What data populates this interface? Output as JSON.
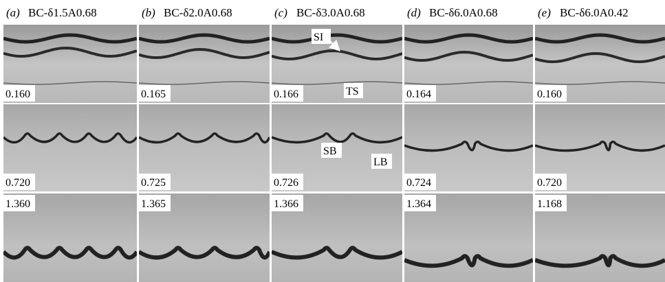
{
  "columns": [
    {
      "label": "(a)",
      "title": "BC-δ1.5A0.68",
      "times": [
        "0.160",
        "0.720",
        "1.360"
      ]
    },
    {
      "label": "(b)",
      "title": "BC-δ2.0A0.68",
      "times": [
        "0.165",
        "0.725",
        "1.365"
      ]
    },
    {
      "label": "(c)",
      "title": "BC-δ3.0A0.68",
      "times": [
        "0.166",
        "0.726",
        "1.366"
      ]
    },
    {
      "label": "(d)",
      "title": "BC-δ6.0A0.68",
      "times": [
        "0.164",
        "0.724",
        "1.364"
      ]
    },
    {
      "label": "(e)",
      "title": "BC-δ6.0A0.42",
      "times": [
        "0.160",
        "0.720",
        "1.168"
      ]
    }
  ],
  "annotations": {
    "si": "SI",
    "ts": "TS",
    "sb": "SB",
    "lb": "LB"
  }
}
